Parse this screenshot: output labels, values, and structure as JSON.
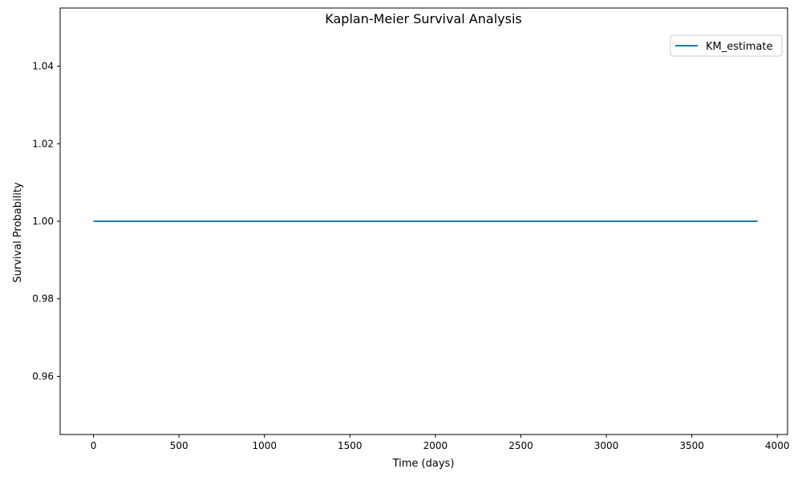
{
  "chart_data": {
    "type": "line",
    "title": "Kaplan-Meier Survival Analysis",
    "xlabel": "Time (days)",
    "ylabel": "Survival Probability",
    "xlim": [
      -195,
      4060
    ],
    "ylim": [
      0.945,
      1.055
    ],
    "x_ticks": [
      0,
      500,
      1000,
      1500,
      2000,
      2500,
      3000,
      3500,
      4000
    ],
    "x_tick_labels": [
      "0",
      "500",
      "1000",
      "1500",
      "2000",
      "2500",
      "3000",
      "3500",
      "4000"
    ],
    "y_ticks": [
      0.96,
      0.98,
      1.0,
      1.02,
      1.04
    ],
    "y_tick_labels": [
      "0.96",
      "0.98",
      "1.00",
      "1.02",
      "1.04"
    ],
    "grid": false,
    "legend": {
      "placement": "top-right",
      "entries": [
        "KM_estimate"
      ]
    },
    "series": [
      {
        "name": "KM_estimate",
        "color": "#1f77b4",
        "x": [
          0,
          3885
        ],
        "y": [
          1.0,
          1.0
        ]
      }
    ]
  }
}
